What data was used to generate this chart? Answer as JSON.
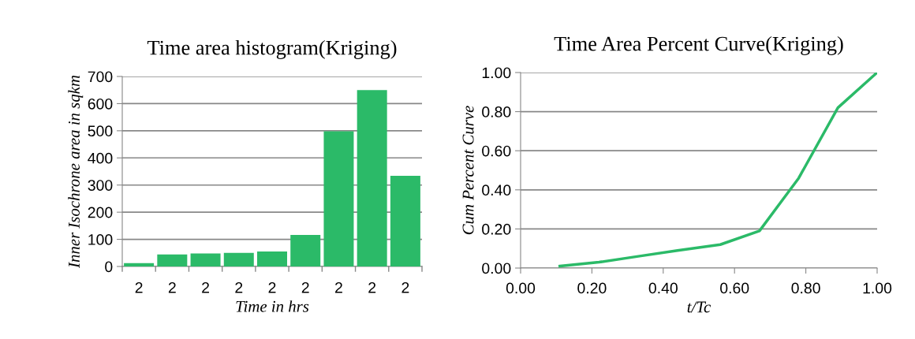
{
  "chart_data": [
    {
      "type": "bar",
      "title": "Time area histogram(Kriging)",
      "xlabel": "Time in hrs",
      "ylabel": "Inner Isochrone area in sqkm",
      "categories": [
        "2",
        "2",
        "2",
        "2",
        "2",
        "2",
        "2",
        "2",
        "2"
      ],
      "values": [
        12,
        44,
        48,
        50,
        55,
        116,
        498,
        650,
        334
      ],
      "color": "#2bba68",
      "ylim": [
        0,
        700
      ],
      "yticks": [
        0,
        100,
        200,
        300,
        400,
        500,
        600,
        700
      ],
      "grid": "y"
    },
    {
      "type": "line",
      "title": "Time Area Percent Curve(Kriging)",
      "xlabel": "t/Tc",
      "ylabel": "Cum Percent Curve",
      "series": [
        {
          "color": "#2bba68",
          "x": [
            0.11,
            0.22,
            0.33,
            0.44,
            0.56,
            0.67,
            0.78,
            0.89,
            1.0
          ],
          "values": [
            0.01,
            0.03,
            0.06,
            0.09,
            0.12,
            0.19,
            0.46,
            0.82,
            1.0
          ]
        }
      ],
      "xlim": [
        0,
        1
      ],
      "xticks": [
        {
          "value": 0,
          "label": "0.00"
        },
        {
          "value": 0.2,
          "label": "0.20"
        },
        {
          "value": 0.4,
          "label": "0.40"
        },
        {
          "value": 0.6,
          "label": "0.60"
        },
        {
          "value": 0.8,
          "label": "0.80"
        },
        {
          "value": 1,
          "label": "1.00"
        }
      ],
      "ylim": [
        0,
        1
      ],
      "yticks": [
        {
          "value": 0,
          "label": "0.00"
        },
        {
          "value": 0.2,
          "label": "0.20"
        },
        {
          "value": 0.4,
          "label": "0.40"
        },
        {
          "value": 0.6,
          "label": "0.60"
        },
        {
          "value": 0.8,
          "label": "0.80"
        },
        {
          "value": 1,
          "label": "1.00"
        }
      ],
      "grid": "y",
      "marker": "none",
      "line_style": "solid"
    }
  ]
}
